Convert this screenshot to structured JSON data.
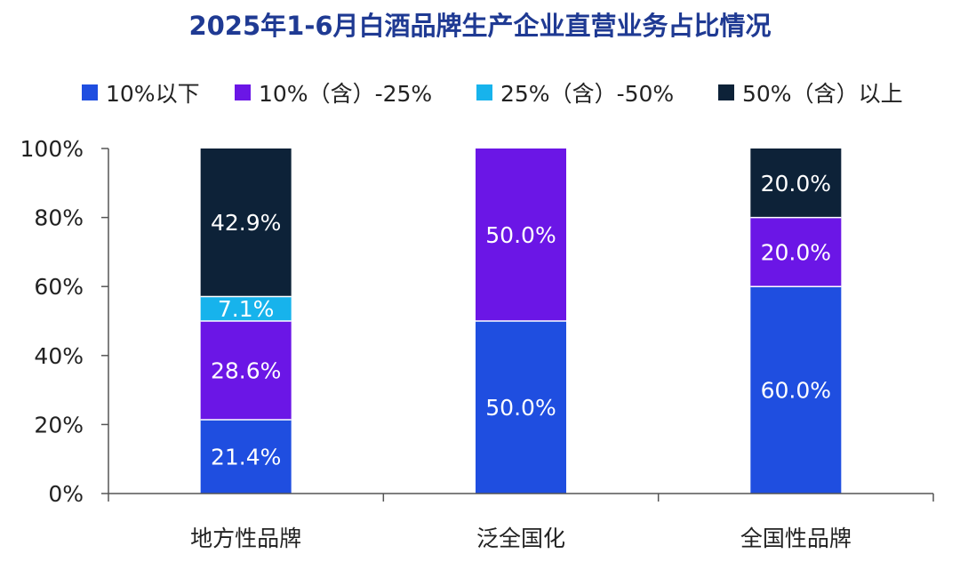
{
  "chart_data": {
    "type": "bar",
    "stacked": true,
    "title": "2025年1-6月白酒品牌生产企业直营业务占比情况",
    "categories": [
      "地方性品牌",
      "泛全国化",
      "全国性品牌"
    ],
    "series": [
      {
        "name": "10%以下",
        "color": "#1f4ee0",
        "values": [
          21.4,
          50.0,
          60.0
        ],
        "labels": [
          "21.4%",
          "50.0%",
          "60.0%"
        ]
      },
      {
        "name": "10%（含）-25%",
        "color": "#6b16e6",
        "values": [
          28.6,
          50.0,
          20.0
        ],
        "labels": [
          "28.6%",
          "50.0%",
          "20.0%"
        ]
      },
      {
        "name": "25%（含）-50%",
        "color": "#17b3ec",
        "values": [
          7.1,
          0,
          0
        ],
        "labels": [
          "7.1%",
          "",
          ""
        ]
      },
      {
        "name": "50%（含）以上",
        "color": "#0d2238",
        "values": [
          42.9,
          0,
          20.0
        ],
        "labels": [
          "42.9%",
          "",
          "20.0%"
        ]
      }
    ],
    "y_ticks": [
      "0%",
      "20%",
      "40%",
      "60%",
      "80%",
      "100%"
    ],
    "ylim": [
      0,
      100
    ],
    "legend_position": "top",
    "grid": false
  }
}
